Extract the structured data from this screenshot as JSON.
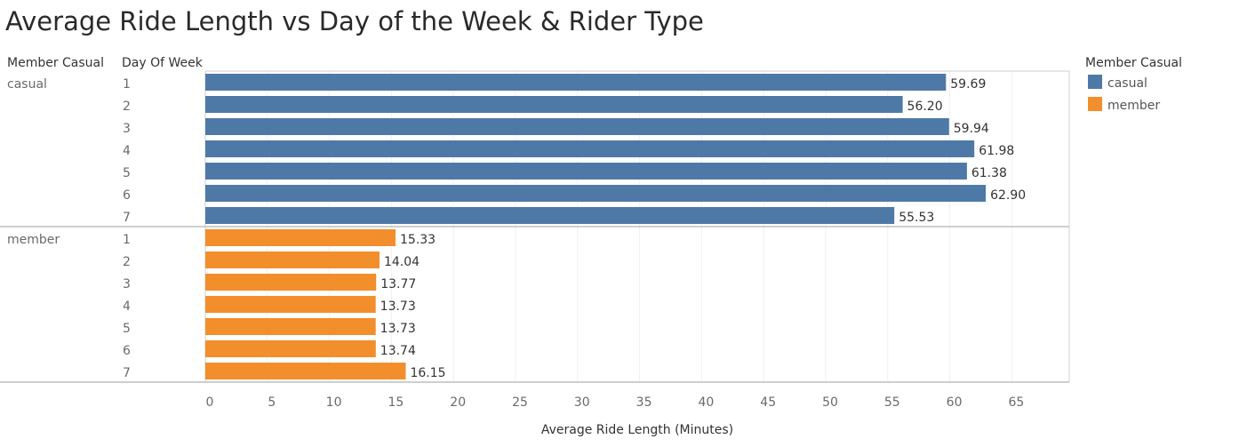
{
  "title": "Average Ride Length vs Day of the Week & Rider Type",
  "chart_data": {
    "type": "bar",
    "orientation": "horizontal",
    "title": "Average Ride Length vs Day of the Week & Rider Type",
    "row_headers": [
      "Member Casual",
      "Day Of Week"
    ],
    "xlabel": "Average Ride Length (Minutes)",
    "xlim": [
      0,
      70
    ],
    "x_ticks": [
      0,
      5,
      10,
      15,
      20,
      25,
      30,
      35,
      40,
      45,
      50,
      55,
      60,
      65
    ],
    "grid": true,
    "groups": [
      {
        "name": "casual",
        "color": "#4e79a7",
        "categories": [
          "1",
          "2",
          "3",
          "4",
          "5",
          "6",
          "7"
        ],
        "values": [
          59.69,
          56.2,
          59.94,
          61.98,
          61.38,
          62.9,
          55.53
        ],
        "labels": [
          "59.69",
          "56.20",
          "59.94",
          "61.98",
          "61.38",
          "62.90",
          "55.53"
        ]
      },
      {
        "name": "member",
        "color": "#f28e2b",
        "categories": [
          "1",
          "2",
          "3",
          "4",
          "5",
          "6",
          "7"
        ],
        "values": [
          15.33,
          14.04,
          13.77,
          13.73,
          13.73,
          13.74,
          16.15
        ],
        "labels": [
          "15.33",
          "14.04",
          "13.77",
          "13.73",
          "13.73",
          "13.74",
          "16.15"
        ]
      }
    ],
    "legend": {
      "title": "Member Casual",
      "position": "right",
      "items": [
        {
          "label": "casual",
          "color": "#4e79a7"
        },
        {
          "label": "member",
          "color": "#f28e2b"
        }
      ]
    }
  }
}
